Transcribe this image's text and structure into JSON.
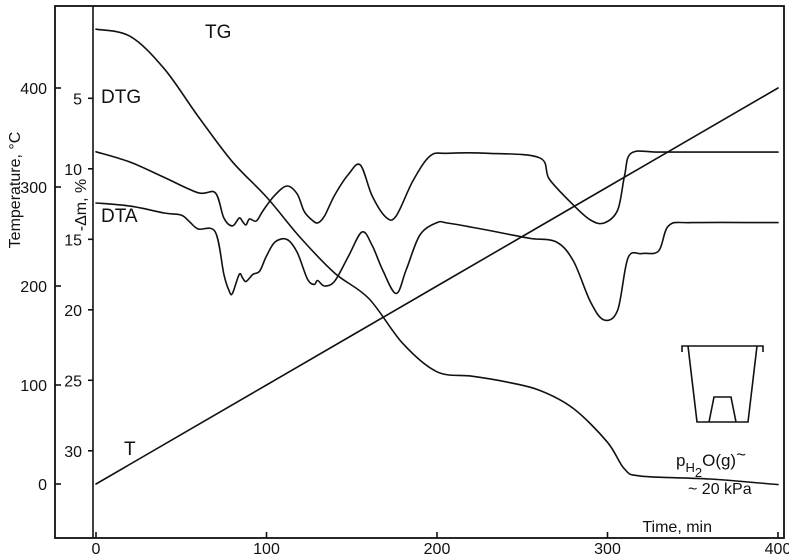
{
  "chart_data": {
    "type": "line",
    "x_axis": {
      "label": "Time, min",
      "range": [
        0,
        400
      ],
      "ticks": [
        0,
        100,
        200,
        300,
        400
      ],
      "tick_labels": [
        "0",
        "100",
        "200",
        "300",
        "400"
      ]
    },
    "y_axis_temperature": {
      "label": "Temperature, °C",
      "range": [
        0,
        440
      ],
      "ticks": [
        0,
        100,
        200,
        300,
        400
      ],
      "tick_labels": [
        "0",
        "100",
        "200",
        "300",
        "400"
      ]
    },
    "y_axis_mass_loss": {
      "label": "-Δm, %",
      "range": [
        0,
        31.9
      ],
      "ticks": [
        5,
        10,
        15,
        20,
        25,
        30
      ],
      "tick_labels": [
        "5",
        "10",
        "15",
        "20",
        "25",
        "30"
      ]
    },
    "series": [
      {
        "name": "T",
        "axis": "temperature",
        "x": [
          0,
          100,
          200,
          300,
          400
        ],
        "y": [
          0,
          100,
          200,
          300,
          400
        ]
      },
      {
        "name": "TG",
        "axis": "mass_loss",
        "x": [
          0,
          20,
          40,
          60,
          80,
          100,
          120,
          140,
          160,
          180,
          200,
          220,
          240,
          260,
          280,
          300,
          310,
          320,
          360,
          400
        ],
        "y": [
          0.1,
          0.6,
          2.9,
          6.3,
          9.5,
          12.0,
          14.9,
          17.4,
          19.2,
          22.4,
          24.4,
          24.7,
          25.1,
          25.7,
          27.0,
          29.4,
          31.3,
          31.8,
          32.0,
          32.4
        ]
      },
      {
        "name": "DTG",
        "axis": "relative",
        "x": [
          0,
          20,
          40,
          60,
          70,
          75,
          80,
          84,
          86,
          88,
          90,
          94,
          98,
          105,
          112,
          118,
          122,
          126,
          130,
          134,
          140,
          148,
          155,
          162,
          170,
          176,
          186,
          196,
          206,
          230,
          260,
          266,
          280,
          290,
          298,
          306,
          310,
          314,
          330,
          360,
          400
        ],
        "y": [
          56.9,
          49.6,
          38.7,
          27.8,
          27.8,
          9.9,
          4.3,
          9.9,
          7.4,
          5.0,
          9.2,
          7.8,
          15.2,
          26.2,
          32.6,
          27.0,
          14.9,
          9.2,
          6.4,
          11.3,
          26.2,
          40.8,
          47.5,
          25.5,
          10.6,
          11.3,
          36.5,
          54.0,
          55.8,
          55.8,
          52.7,
          37.3,
          19.1,
          8.5,
          6.4,
          15.6,
          40.1,
          56.0,
          56.7,
          56.7,
          56.7
        ]
      },
      {
        "name": "DTA",
        "axis": "relative",
        "x": [
          0,
          20,
          40,
          50,
          55,
          60,
          70,
          75,
          78,
          80,
          84,
          86,
          88,
          92,
          96,
          100,
          105,
          112,
          118,
          124,
          128,
          130,
          134,
          140,
          148,
          156,
          162,
          168,
          176,
          182,
          190,
          200,
          206,
          220,
          240,
          255,
          270,
          280,
          290,
          298,
          306,
          312,
          320,
          330,
          336,
          350,
          400
        ],
        "y": [
          20.6,
          18.4,
          13.5,
          12.0,
          7.1,
          2.1,
          0.0,
          -30.1,
          -41.5,
          -43.6,
          -30.1,
          -32.6,
          -35.1,
          -30.1,
          -27.7,
          -17.0,
          -7.1,
          -5.3,
          -14.5,
          -33.3,
          -37.2,
          -34.4,
          -38.3,
          -34.8,
          -17.4,
          0.0,
          -9.6,
          -26.6,
          -43.6,
          -26.6,
          -2.1,
          6.7,
          6.4,
          3.5,
          -1.1,
          -4.6,
          -7.1,
          -20.6,
          -49.6,
          -62.4,
          -55.3,
          -18.4,
          -15.3,
          -13.5,
          4.6,
          6.7,
          6.7
        ]
      }
    ],
    "curve_labels": {
      "t": "T",
      "tg": "TG",
      "dtg": "DTG",
      "dta": "DTA"
    },
    "annotation": {
      "pressure_symbol": "p",
      "pressure_subscript": "H",
      "pressure_subscript_2": "2",
      "pressure_tail": "O(g)",
      "pressure_tilde": "~",
      "pressure_value": "~ 20 kPa"
    },
    "grid": false,
    "legend": "none"
  }
}
